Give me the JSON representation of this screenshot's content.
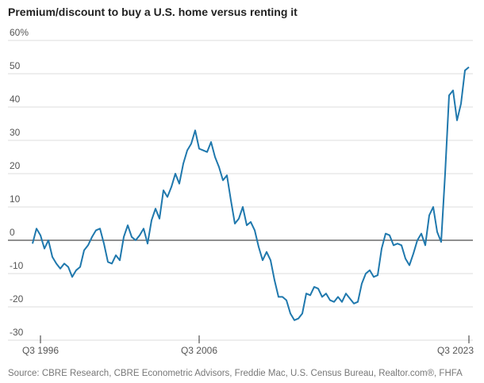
{
  "chart_data": {
    "type": "line",
    "title": "Premium/discount to buy a U.S. home versus renting it",
    "source": "Source: CBRE Research, CBRE Econometric Advisors, Freddie Mac, U.S. Census Bureau, Realtor.com®, FHFA",
    "categories": [
      null,
      null,
      "Q3 1996",
      null,
      null,
      null,
      null,
      null,
      null,
      null,
      null,
      null,
      null,
      null,
      null,
      null,
      null,
      null,
      null,
      null,
      null,
      null,
      null,
      null,
      null,
      null,
      null,
      null,
      null,
      null,
      null,
      null,
      null,
      null,
      null,
      null,
      null,
      null,
      null,
      null,
      null,
      null,
      "Q3 2006",
      null,
      null,
      null,
      null,
      null,
      null,
      null,
      null,
      null,
      null,
      null,
      null,
      null,
      null,
      null,
      null,
      null,
      null,
      null,
      null,
      null,
      null,
      null,
      null,
      null,
      null,
      null,
      null,
      null,
      null,
      null,
      null,
      null,
      null,
      null,
      null,
      null,
      null,
      null,
      null,
      null,
      null,
      null,
      null,
      null,
      null,
      null,
      null,
      null,
      null,
      null,
      null,
      null,
      null,
      null,
      null,
      null,
      null,
      null,
      null,
      null,
      null,
      null,
      null,
      null,
      null,
      null,
      "Q3 2023"
    ],
    "series": [
      {
        "name": "Premium/discount",
        "color": "#1f78ad",
        "values": [
          -1,
          3.5,
          1.5,
          -2.5,
          0,
          -5,
          -7,
          -8.5,
          -7,
          -8,
          -11,
          -9,
          -8,
          -3,
          -1.5,
          1,
          3,
          3.5,
          -1,
          -6.5,
          -7,
          -4.5,
          -6,
          1,
          4.5,
          1,
          0,
          1.5,
          3.5,
          -1,
          6,
          9.5,
          6.5,
          15,
          13,
          16,
          20,
          17,
          23,
          27,
          29,
          33,
          27.5,
          27,
          26.5,
          29.5,
          25,
          22,
          18,
          19.5,
          12,
          5,
          6.5,
          10,
          4.5,
          5.5,
          3,
          -2,
          -6,
          -3.5,
          -6,
          -12,
          -17,
          -17,
          -18,
          -22,
          -24,
          -23.5,
          -22,
          -16,
          -16.5,
          -14,
          -14.5,
          -17,
          -16,
          -18,
          -18.5,
          -17,
          -18.5,
          -16,
          -17.5,
          -19,
          -18.5,
          -13,
          -10,
          -9,
          -11,
          -10.5,
          -2.5,
          2,
          1.5,
          -1.5,
          -1,
          -1.5,
          -5.5,
          -7.5,
          -4,
          0,
          2,
          -1.5,
          7.5,
          10,
          2.5,
          -0.5,
          20,
          43.5,
          45,
          36,
          41,
          51,
          52
        ]
      }
    ],
    "ylim": [
      -30,
      60
    ],
    "yticks": [
      -30,
      -20,
      -10,
      0,
      10,
      20,
      30,
      40,
      50,
      {
        "value": 60,
        "label": "60%"
      }
    ],
    "grid": true
  }
}
